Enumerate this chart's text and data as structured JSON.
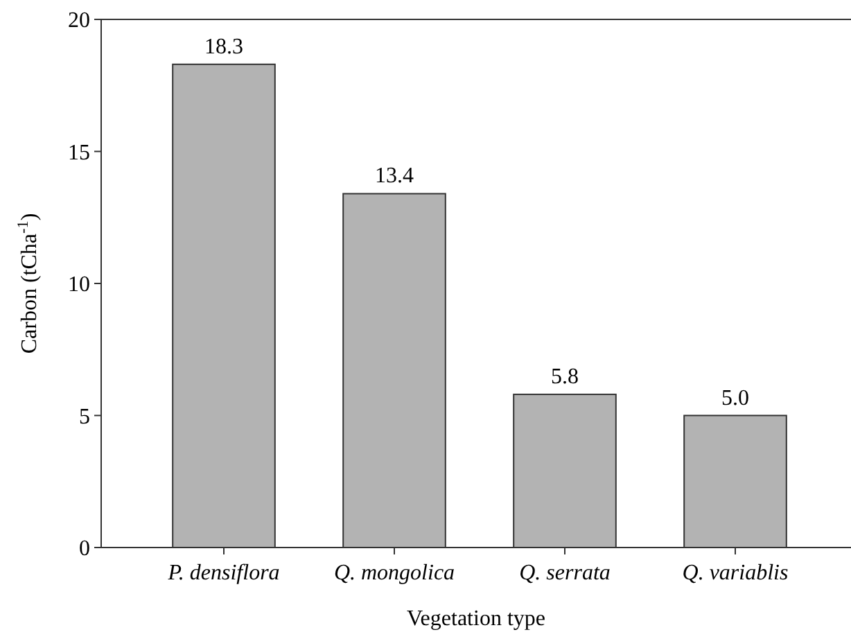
{
  "chart_data": {
    "type": "bar",
    "xlabel": "Vegetation type",
    "ylabel": "Carbon (tCha$^{-1}$)",
    "categories": [
      "P. densiflora",
      "Q. mongolica",
      "Q. serrata",
      "Q. variablis"
    ],
    "values": [
      18.3,
      13.4,
      5.8,
      5.0
    ],
    "color": "#b3b3b3",
    "value_labels": [
      "18.3",
      "13.4",
      "5.8",
      "5.0"
    ],
    "ylim": [
      0,
      20
    ],
    "yticks": [
      0,
      5,
      10,
      15,
      20
    ],
    "grid": false
  }
}
